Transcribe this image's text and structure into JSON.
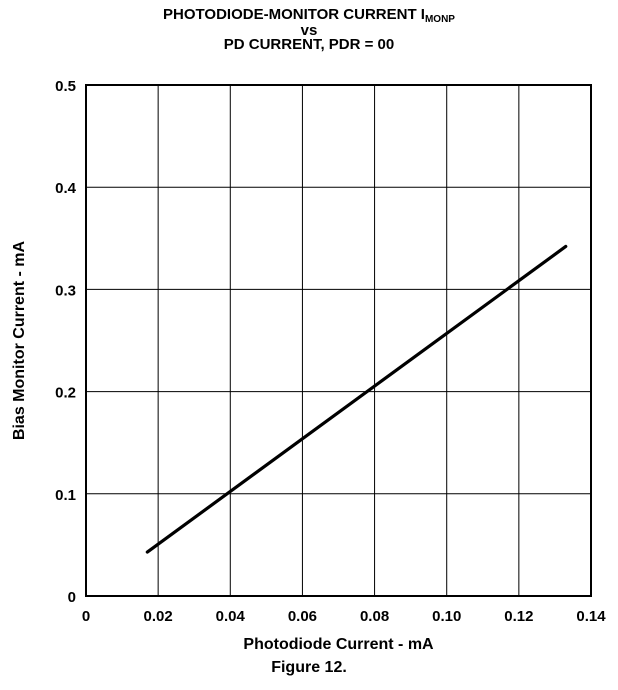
{
  "chart_data": {
    "type": "line",
    "title_main": "PHOTODIODE-MONITOR CURRENT I",
    "title_sub": "MONP",
    "title_line2": "vs",
    "title_line3": "PD CURRENT, PDR = 00",
    "xlabel": "Photodiode Current - mA",
    "ylabel": "Bias Monitor Current - mA",
    "xlim": [
      0,
      0.14
    ],
    "ylim": [
      0,
      0.5
    ],
    "xticks": [
      "0",
      "0.02",
      "0.04",
      "0.06",
      "0.08",
      "0.10",
      "0.12",
      "0.14"
    ],
    "yticks": [
      "0",
      "0.1",
      "0.2",
      "0.3",
      "0.4",
      "0.5"
    ],
    "grid": true,
    "series": [
      {
        "x": [
          0.017,
          0.133
        ],
        "y": [
          0.043,
          0.342
        ]
      }
    ]
  },
  "caption": "Figure 12."
}
